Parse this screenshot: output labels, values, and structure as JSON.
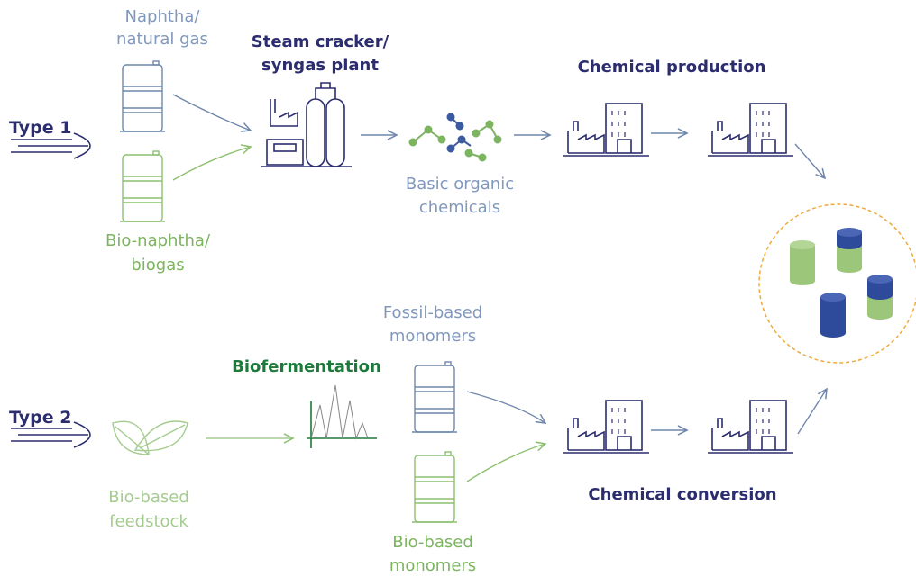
{
  "labels": {
    "naphtha": [
      "Naphtha/",
      "natural gas"
    ],
    "bio_naphtha": [
      "Bio-naphtha/",
      "biogas"
    ],
    "type1": "Type 1",
    "steam_cracker": [
      "Steam cracker/",
      "syngas plant"
    ],
    "basic_chemicals": [
      "Basic organic",
      "chemicals"
    ],
    "chemical_production": "Chemical production",
    "fossil_monomers": [
      "Fossil-based",
      "monomers"
    ],
    "biofermentation": "Biofermentation",
    "type2": "Type 2",
    "bio_feedstock": [
      "Bio-based",
      "feedstock"
    ],
    "bio_monomers": [
      "Bio-based",
      "monomers"
    ],
    "chemical_conversion": "Chemical conversion"
  }
}
